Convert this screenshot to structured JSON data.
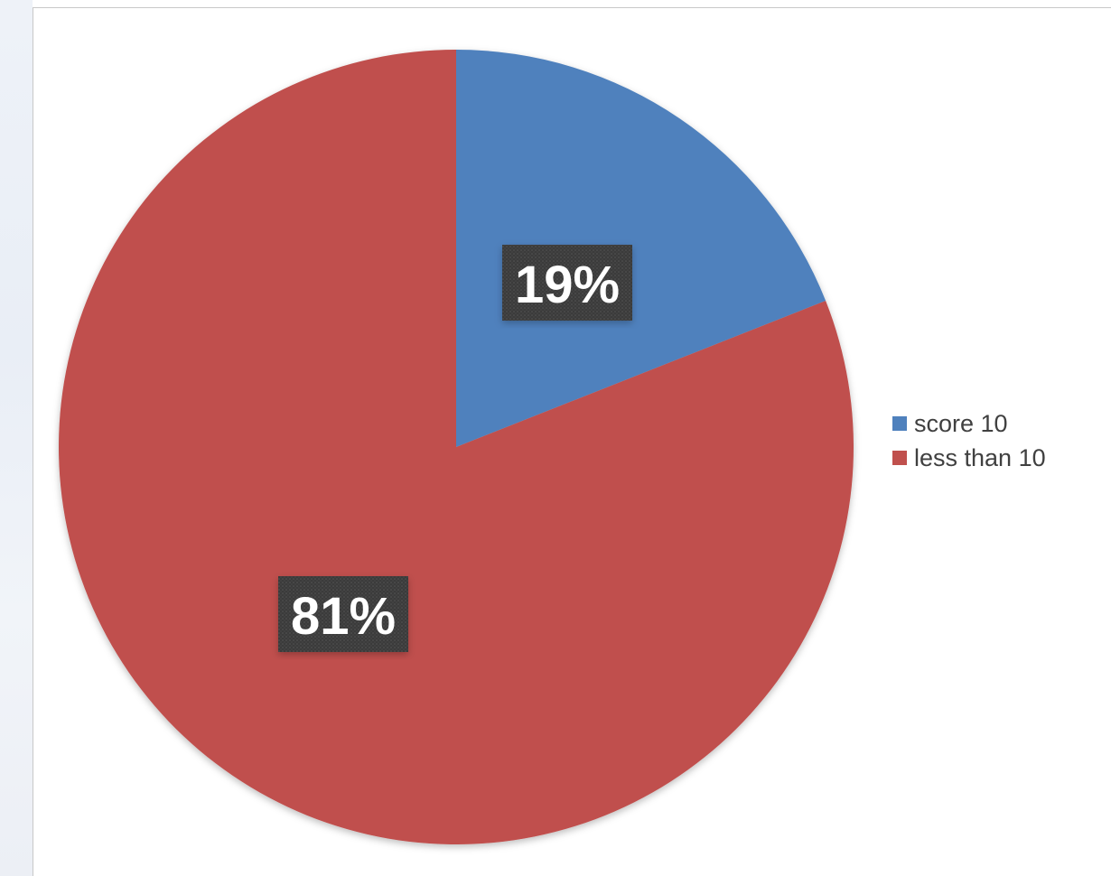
{
  "colors": {
    "score_10": "#4f81bd",
    "less_than_10": "#c0504d",
    "label_bg": "#3a3a3a"
  },
  "chart_data": {
    "type": "pie",
    "title": "",
    "slices": [
      {
        "label": "score 10",
        "value": 19,
        "data_label": "19%"
      },
      {
        "label": "less than 10",
        "value": 81,
        "data_label": "81%"
      }
    ],
    "legend_position": "right",
    "start_angle": "12 o'clock, clockwise"
  },
  "legend": {
    "items": [
      {
        "label": "score 10"
      },
      {
        "label": "less than 10"
      }
    ]
  }
}
